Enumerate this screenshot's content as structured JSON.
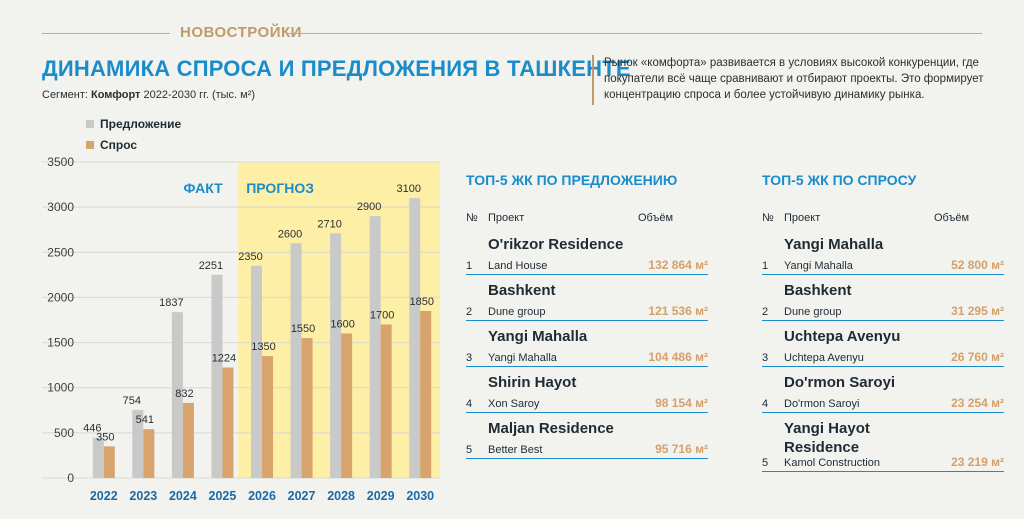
{
  "header": {
    "section_label": "НОВОСТРОЙКИ",
    "title": "ДИНАМИКА СПРОСА И ПРЕДЛОЖЕНИЯ В ТАШКЕНТЕ",
    "subtitle_prefix": "Сегмент: ",
    "subtitle_segment": "Комфорт",
    "subtitle_suffix": " 2022-2030 гг. (тыс. м²)",
    "description": "Рынок «комфорта» развивается в условиях высокой конкуренции, где покупатели всё чаще сравнивают и отбирают проекты. Это формирует концентрацию спроса и более устойчивую динамику рынка."
  },
  "colors": {
    "supply": "#c8c9c8",
    "demand": "#d9a36e",
    "forecast_bg": "#fdefa6",
    "accent": "#1a8cc9"
  },
  "chart_data": {
    "type": "bar",
    "categories": [
      "2022",
      "2023",
      "2024",
      "2025",
      "2026",
      "2027",
      "2028",
      "2029",
      "2030"
    ],
    "series": [
      {
        "name": "Предложение",
        "values": [
          446,
          754,
          1837,
          2251,
          2350,
          2600,
          2710,
          2900,
          3100
        ]
      },
      {
        "name": "Спрос",
        "values": [
          350,
          541,
          832,
          1224,
          1350,
          1550,
          1600,
          1700,
          1850
        ]
      }
    ],
    "ylim": [
      0,
      3500
    ],
    "yticks": [
      0,
      500,
      1000,
      1500,
      2000,
      2500,
      3000,
      3500
    ],
    "legend_position": "top-left",
    "annotations": {
      "fact": "ФАКТ",
      "forecast": "ПРОГНОЗ"
    },
    "forecast_start_category": "2026",
    "grid": true
  },
  "supply_table": {
    "title": "ТОП-5 ЖК ПО ПРЕДЛОЖЕНИЮ",
    "col_num": "№",
    "col_project": "Проект",
    "col_volume": "Объём",
    "rows": [
      {
        "num": "1",
        "name": "O'rikzor Residence",
        "developer": "Land House",
        "volume": "132 864 м²"
      },
      {
        "num": "2",
        "name": "Bashkent",
        "developer": "Dune group",
        "volume": "121 536 м²"
      },
      {
        "num": "3",
        "name": "Yangi Mahalla",
        "developer": "Yangi Mahalla",
        "volume": "104 486 м²"
      },
      {
        "num": "4",
        "name": "Shirin Hayot",
        "developer": "Xon Saroy",
        "volume": "98 154 м²"
      },
      {
        "num": "5",
        "name": "Maljan Residence",
        "developer": "Better Best",
        "volume": "95 716 м²"
      }
    ]
  },
  "demand_table": {
    "title": "ТОП-5 ЖК ПО СПРОСУ",
    "col_num": "№",
    "col_project": "Проект",
    "col_volume": "Объём",
    "rows": [
      {
        "num": "1",
        "name": "Yangi Mahalla",
        "developer": "Yangi Mahalla",
        "volume": "52 800 м²"
      },
      {
        "num": "2",
        "name": "Bashkent",
        "developer": "Dune group",
        "volume": "31 295 м²"
      },
      {
        "num": "3",
        "name": "Uchtepa Avenyu",
        "developer": "Uchtepa Avenyu",
        "volume": "26 760 м²"
      },
      {
        "num": "4",
        "name": "Do'rmon Saroyi",
        "developer": "Do'rmon Saroyi",
        "volume": "23 254 м²"
      },
      {
        "num": "5",
        "name": "Yangi Hayot Residence",
        "developer": "Kamol Construction",
        "volume": "23 219 м²"
      }
    ]
  }
}
